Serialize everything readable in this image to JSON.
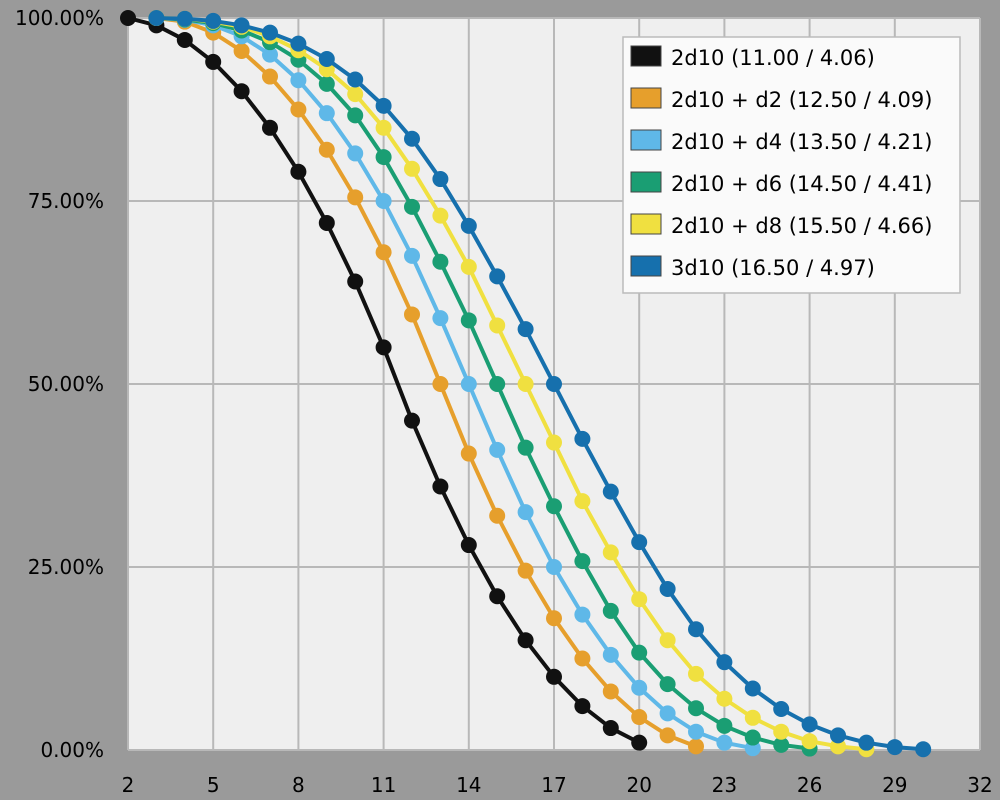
{
  "chart_data": {
    "type": "line",
    "title": "",
    "xlabel": "",
    "ylabel": "",
    "xlim": [
      2,
      32
    ],
    "ylim": [
      0,
      100
    ],
    "x_ticks": [
      2,
      5,
      8,
      11,
      14,
      17,
      20,
      23,
      26,
      29,
      32
    ],
    "y_ticks": [
      0,
      25,
      50,
      75,
      100
    ],
    "x_tick_labels": [
      "2",
      "5",
      "8",
      "11",
      "14",
      "17",
      "20",
      "23",
      "26",
      "29",
      "32"
    ],
    "y_tick_labels": [
      "0.00%",
      "25.00%",
      "50.00%",
      "75.00%",
      "100.00%"
    ],
    "grid": true,
    "legend_position": "top-right",
    "colors": {
      "plot_background": "#efefef",
      "page_background": "#9a9a9a",
      "grid": "#b8b8b8"
    },
    "series": [
      {
        "label": "2d10 (11.00 / 4.06)",
        "color": "#111111",
        "x": [
          2,
          3,
          4,
          5,
          6,
          7,
          8,
          9,
          10,
          11,
          12,
          13,
          14,
          15,
          16,
          17,
          18,
          19,
          20
        ],
        "y": [
          100,
          99,
          97,
          94,
          90,
          85,
          79,
          72,
          64,
          55,
          45,
          36,
          28,
          21,
          15,
          10,
          6,
          3,
          1
        ]
      },
      {
        "label": "2d10 + d2 (12.50 / 4.09)",
        "color": "#e69f2c",
        "x": [
          3,
          4,
          5,
          6,
          7,
          8,
          9,
          10,
          11,
          12,
          13,
          14,
          15,
          16,
          17,
          18,
          19,
          20,
          21,
          22
        ],
        "y": [
          100,
          99.5,
          98,
          95.5,
          92,
          87.5,
          82,
          75.5,
          68,
          59.5,
          50,
          40.5,
          32,
          24.5,
          18,
          12.5,
          8,
          4.5,
          2,
          0.5
        ]
      },
      {
        "label": "2d10 + d4 (13.50 / 4.21)",
        "color": "#5fb8e8",
        "x": [
          3,
          4,
          5,
          6,
          7,
          8,
          9,
          10,
          11,
          12,
          13,
          14,
          15,
          16,
          17,
          18,
          19,
          20,
          21,
          22,
          23,
          24
        ],
        "y": [
          100,
          99.75,
          99,
          97.5,
          95,
          91.5,
          87,
          81.5,
          75,
          67.5,
          59,
          50,
          41,
          32.5,
          25,
          18.5,
          13,
          8.5,
          5,
          2.5,
          1,
          0.25
        ]
      },
      {
        "label": "2d10 + d6 (14.50 / 4.41)",
        "color": "#1a9e73",
        "x": [
          3,
          4,
          5,
          6,
          7,
          8,
          9,
          10,
          11,
          12,
          13,
          14,
          15,
          16,
          17,
          18,
          19,
          20,
          21,
          22,
          23,
          24,
          25,
          26
        ],
        "y": [
          100,
          99.8,
          99.3,
          98.3,
          96.7,
          94.3,
          91,
          86.7,
          81,
          74.2,
          66.7,
          58.7,
          50,
          41.3,
          33.3,
          25.8,
          19,
          13.3,
          9,
          5.7,
          3.3,
          1.7,
          0.7,
          0.2
        ]
      },
      {
        "label": "2d10 + d8 (15.50 / 4.66)",
        "color": "#f0e040",
        "x": [
          3,
          4,
          5,
          6,
          7,
          8,
          9,
          10,
          11,
          12,
          13,
          14,
          15,
          16,
          17,
          18,
          19,
          20,
          21,
          22,
          23,
          24,
          25,
          26,
          27,
          28
        ],
        "y": [
          100,
          99.9,
          99.5,
          98.8,
          97.5,
          95.6,
          93,
          89.6,
          85,
          79.4,
          73,
          66,
          58,
          50,
          42,
          34,
          27,
          20.6,
          15,
          10.4,
          7,
          4.4,
          2.5,
          1.2,
          0.5,
          0.1
        ]
      },
      {
        "label": "3d10 (16.50 / 4.97)",
        "color": "#1670ad",
        "x": [
          3,
          4,
          5,
          6,
          7,
          8,
          9,
          10,
          11,
          12,
          13,
          14,
          15,
          16,
          17,
          18,
          19,
          20,
          21,
          22,
          23,
          24,
          25,
          26,
          27,
          28,
          29,
          30
        ],
        "y": [
          100,
          99.9,
          99.6,
          99,
          98,
          96.5,
          94.4,
          91.6,
          88,
          83.5,
          78,
          71.6,
          64.7,
          57.5,
          50,
          42.5,
          35.3,
          28.4,
          22,
          16.5,
          12,
          8.4,
          5.6,
          3.5,
          2,
          1,
          0.4,
          0.1
        ]
      }
    ]
  }
}
